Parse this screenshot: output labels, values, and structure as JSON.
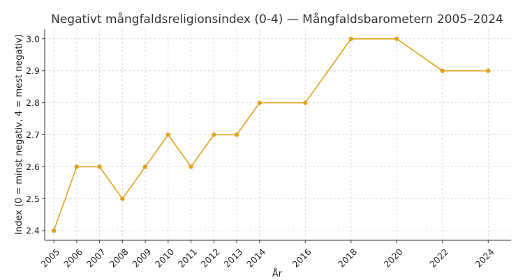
{
  "chart_data": {
    "type": "line",
    "title": "Negativt mångfaldsreligionsindex (0-4) — Mångfaldsbarometern 2005–2024",
    "xlabel": "År",
    "ylabel": "Index (0 = minst negativ, 4 = mest negativ)",
    "x": [
      2005,
      2006,
      2007,
      2008,
      2009,
      2010,
      2011,
      2012,
      2013,
      2014,
      2016,
      2018,
      2020,
      2022,
      2024
    ],
    "x_tick_labels": [
      "2005",
      "2006",
      "2007",
      "2008",
      "2009",
      "2010",
      "2011",
      "2012",
      "2013",
      "2014",
      "2016",
      "2018",
      "2020",
      "2022",
      "2024"
    ],
    "series": [
      {
        "values": [
          2.4,
          2.6,
          2.6,
          2.5,
          2.6,
          2.7,
          2.6,
          2.7,
          2.7,
          2.8,
          2.8,
          3.0,
          3.0,
          2.9,
          2.9
        ],
        "color": "#e0a21b"
      }
    ],
    "yticks": [
      2.4,
      2.5,
      2.6,
      2.7,
      2.8,
      2.9,
      3.0
    ],
    "y_tick_labels": [
      "2.4",
      "2.5",
      "2.6",
      "2.7",
      "2.8",
      "2.9",
      "3.0"
    ],
    "xlim": [
      2004.6,
      2025.0
    ],
    "ylim": [
      2.37,
      3.03
    ],
    "grid": true,
    "legend": "none"
  }
}
